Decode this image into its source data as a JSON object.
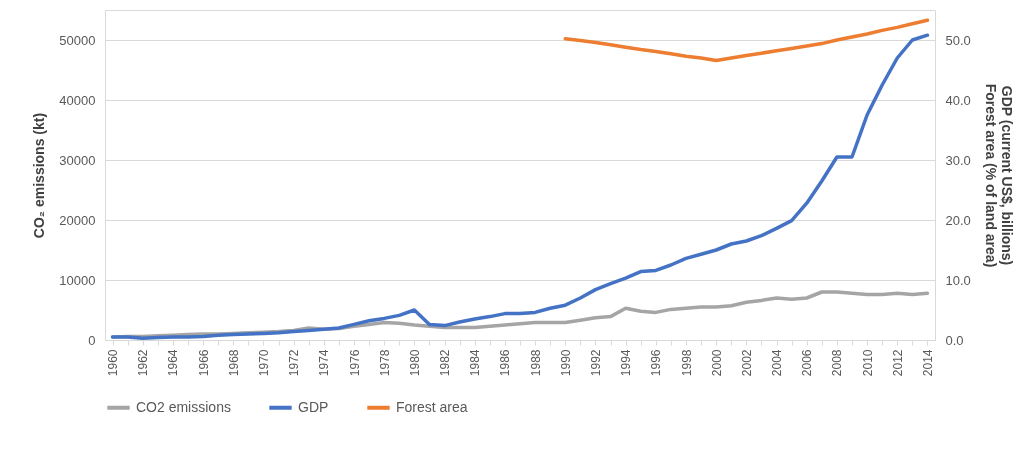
{
  "chart_data": {
    "type": "line",
    "categories": [
      "1960",
      null,
      "1962",
      null,
      "1964",
      null,
      "1966",
      null,
      "1968",
      null,
      "1970",
      null,
      "1972",
      null,
      "1974",
      null,
      "1976",
      null,
      "1978",
      null,
      "1980",
      null,
      "1982",
      null,
      "1984",
      null,
      "1986",
      null,
      "1988",
      null,
      "1990",
      null,
      "1992",
      null,
      "1994",
      null,
      "1996",
      null,
      "1998",
      null,
      "2000",
      null,
      "2002",
      null,
      "2004",
      null,
      "2006",
      null,
      "2008",
      null,
      "2010",
      null,
      "2012",
      null,
      "2014"
    ],
    "ylabel": "CO₂ emissions (kt)",
    "y2label": "GDP (current US$, billions)\nForest area (% of land area)",
    "ylim": [
      0,
      55000
    ],
    "yticks": [
      0,
      10000,
      20000,
      30000,
      40000,
      50000
    ],
    "y2lim": [
      0,
      55
    ],
    "y2ticks": [
      {
        "value": 0,
        "label": "0.0"
      },
      {
        "value": 10,
        "label": "10.0"
      },
      {
        "value": 20,
        "label": "20.0"
      },
      {
        "value": 30,
        "label": "30.0"
      },
      {
        "value": 40,
        "label": "40.0"
      },
      {
        "value": 50,
        "label": "50.0"
      }
    ],
    "grid": "y",
    "legend": "bottom",
    "series": [
      {
        "name": "CO2 emissions",
        "color": "#a5a5a5",
        "values": [
          500,
          600,
          600,
          700,
          800,
          900,
          1000,
          1000,
          1100,
          1200,
          1300,
          1400,
          1600,
          2000,
          1800,
          1900,
          2300,
          2600,
          2900,
          2800,
          2500,
          2300,
          2100,
          2100,
          2100,
          2300,
          2500,
          2700,
          2900,
          2900,
          2900,
          3300,
          3700,
          3900,
          5300,
          4800,
          4600,
          5100,
          5300,
          5500,
          5500,
          5700,
          6300,
          6600,
          7000,
          6800,
          7000,
          8000,
          8000,
          7800,
          7600,
          7600,
          7800,
          7600,
          7800
        ]
      },
      {
        "name": "GDP",
        "color": "#4472c4",
        "axis": "y2",
        "values": [
          0.5,
          0.5,
          0.3,
          0.4,
          0.5,
          0.5,
          0.6,
          0.8,
          0.9,
          1.0,
          1.1,
          1.2,
          1.4,
          1.6,
          1.8,
          2.0,
          2.6,
          3.2,
          3.6,
          4.1,
          5.0,
          2.6,
          2.4,
          3.0,
          3.5,
          3.9,
          4.4,
          4.4,
          4.6,
          5.3,
          5.8,
          7.0,
          8.4,
          9.4,
          10.3,
          11.4,
          11.6,
          12.5,
          13.6,
          14.3,
          15.0,
          16.0,
          16.5,
          17.4,
          18.6,
          19.9,
          22.8,
          26.5,
          30.5,
          30.5,
          37.5,
          42.5,
          47.0,
          50.0,
          50.8
        ]
      },
      {
        "name": "Forest area",
        "color": "#ed7d31",
        "axis": "y2",
        "values": [
          null,
          null,
          null,
          null,
          null,
          null,
          null,
          null,
          null,
          null,
          null,
          null,
          null,
          null,
          null,
          null,
          null,
          null,
          null,
          null,
          null,
          null,
          null,
          null,
          null,
          null,
          null,
          null,
          null,
          null,
          50.2,
          49.9,
          49.6,
          49.2,
          48.8,
          48.4,
          48.1,
          47.7,
          47.3,
          47.0,
          46.6,
          47.0,
          47.4,
          47.8,
          48.2,
          48.6,
          49.0,
          49.4,
          50.0,
          50.5,
          51.0,
          51.6,
          52.1,
          52.7,
          53.3
        ]
      }
    ]
  }
}
